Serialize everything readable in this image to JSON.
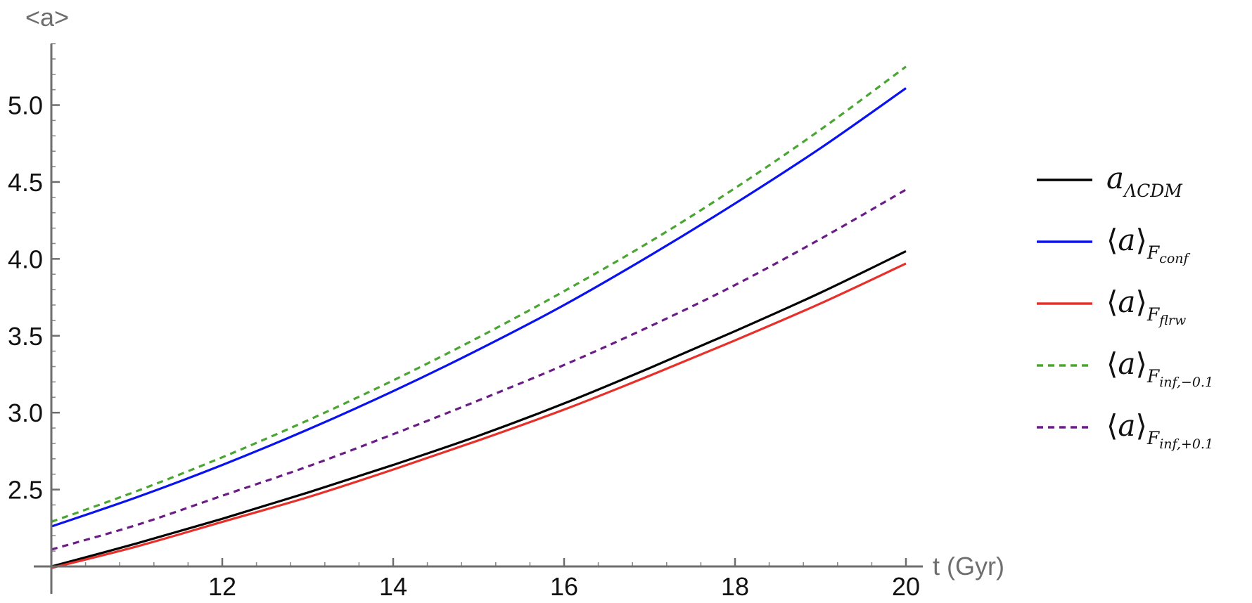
{
  "chart_data": {
    "type": "line",
    "xlabel": "t (Gyr)",
    "ylabel": "<a>",
    "xlim": [
      10,
      20
    ],
    "ylim": [
      2.0,
      5.4
    ],
    "x_ticks": [
      12,
      14,
      16,
      18,
      20
    ],
    "x_tick_labels": [
      "12",
      "14",
      "16",
      "18",
      "20"
    ],
    "y_ticks": [
      2.5,
      3.0,
      3.5,
      4.0,
      4.5,
      5.0
    ],
    "y_tick_labels": [
      "2.5",
      "3.0",
      "3.5",
      "4.0",
      "4.5",
      "5.0"
    ],
    "grid": false,
    "legend_placement": "right",
    "x": [
      10,
      11,
      12,
      13,
      14,
      15,
      16,
      17,
      18,
      19,
      20
    ],
    "series": [
      {
        "legend": {
          "base": "a",
          "bracket": false,
          "sub": "ΛCDM",
          "subsub": ""
        },
        "color": "#000000",
        "dashed": false,
        "values": [
          2.0,
          2.15,
          2.31,
          2.48,
          2.66,
          2.85,
          3.06,
          3.29,
          3.53,
          3.78,
          4.05
        ]
      },
      {
        "legend": {
          "base": "a",
          "bracket": true,
          "sub": "F",
          "subsub": "conf"
        },
        "color": "#0a12ee",
        "dashed": false,
        "values": [
          2.26,
          2.45,
          2.66,
          2.89,
          3.14,
          3.41,
          3.7,
          4.02,
          4.36,
          4.72,
          5.11
        ]
      },
      {
        "legend": {
          "base": "a",
          "bracket": true,
          "sub": "F",
          "subsub": "flrw"
        },
        "color": "#e8302a",
        "dashed": false,
        "values": [
          1.99,
          2.13,
          2.29,
          2.45,
          2.63,
          2.82,
          3.02,
          3.24,
          3.47,
          3.71,
          3.97
        ]
      },
      {
        "legend": {
          "base": "a",
          "bracket": true,
          "sub": "F",
          "subsub": "inf,−0.1"
        },
        "color": "#4aa533",
        "dashed": true,
        "values": [
          2.29,
          2.49,
          2.71,
          2.95,
          3.21,
          3.49,
          3.79,
          4.11,
          4.46,
          4.84,
          5.25
        ]
      },
      {
        "legend": {
          "base": "a",
          "bracket": true,
          "sub": "F",
          "subsub": "inf,+0.1"
        },
        "color": "#6b1c87",
        "dashed": true,
        "values": [
          2.11,
          2.27,
          2.46,
          2.65,
          2.86,
          3.08,
          3.31,
          3.56,
          3.83,
          4.13,
          4.45
        ]
      }
    ]
  }
}
